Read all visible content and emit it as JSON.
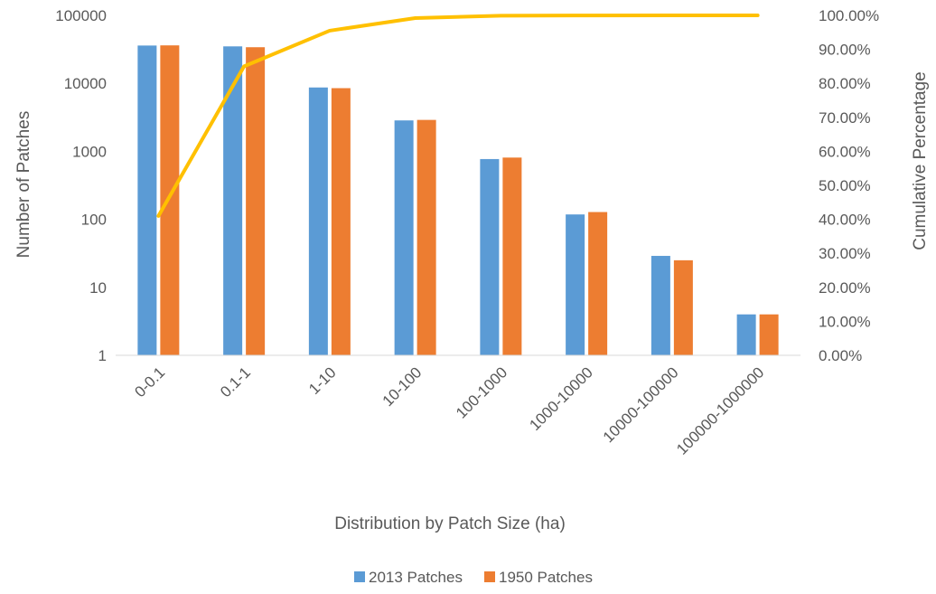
{
  "chart_data": {
    "type": "bar",
    "title": "",
    "xlabel": "Distribution by Patch Size (ha)",
    "ylabel": "Number of Patches",
    "y2label": "Cumulative Percentage",
    "y_scale": "log",
    "ylim": [
      1,
      100000
    ],
    "y_ticks": [
      "1",
      "10",
      "100",
      "1000",
      "10000",
      "100000"
    ],
    "y2lim": [
      0,
      1
    ],
    "y2_ticks": [
      "0.00%",
      "10.00%",
      "20.00%",
      "30.00%",
      "40.00%",
      "50.00%",
      "60.00%",
      "70.00%",
      "80.00%",
      "90.00%",
      "100.00%"
    ],
    "categories": [
      "0-0.1",
      "0.1-1",
      "1-10",
      "10-100",
      "100-1000",
      "1000-10000",
      "10000-100000",
      "100000-1000000"
    ],
    "series": [
      {
        "name": "2013 Patches",
        "kind": "bar",
        "axis": "left",
        "color": "#5B9BD5",
        "values": [
          36000,
          35000,
          8700,
          2850,
          770,
          118,
          29,
          4
        ]
      },
      {
        "name": "1950 Patches",
        "kind": "bar",
        "axis": "left",
        "color": "#ED7D31",
        "values": [
          36200,
          34000,
          8500,
          2900,
          810,
          128,
          25,
          4
        ]
      },
      {
        "kind": "line",
        "axis": "right",
        "color": "#FFC000",
        "values": [
          0.41,
          0.85,
          0.955,
          0.992,
          0.999,
          0.9998,
          0.99995,
          1.0
        ]
      }
    ],
    "grid": false,
    "legend": "bottom"
  }
}
